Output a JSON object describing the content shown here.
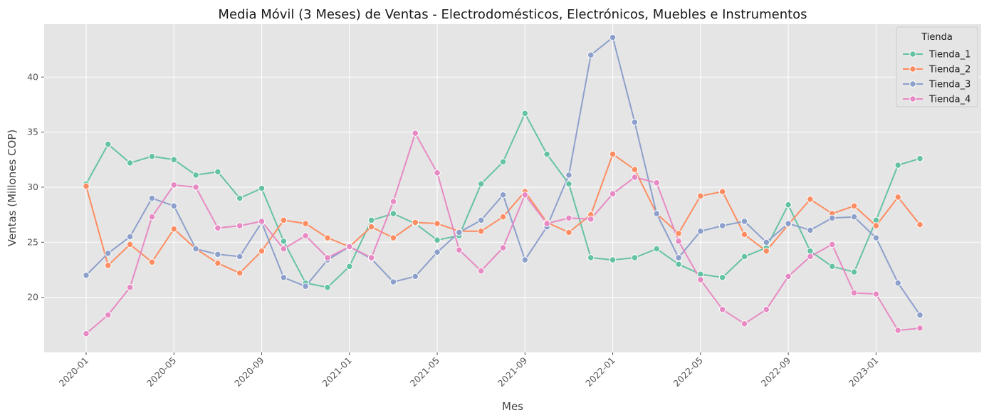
{
  "chart_data": {
    "type": "line",
    "title": "Media Móvil (3 Meses) de Ventas - Electrodomésticos, Electrónicos, Muebles e Instrumentos",
    "xlabel": "Mes",
    "ylabel": "Ventas (Millones COP)",
    "x": [
      "2020-01",
      "2020-02",
      "2020-03",
      "2020-04",
      "2020-05",
      "2020-06",
      "2020-07",
      "2020-08",
      "2020-09",
      "2020-10",
      "2020-11",
      "2020-12",
      "2021-01",
      "2021-02",
      "2021-03",
      "2021-04",
      "2021-05",
      "2021-06",
      "2021-07",
      "2021-08",
      "2021-09",
      "2021-10",
      "2021-11",
      "2021-12",
      "2022-01",
      "2022-02",
      "2022-03",
      "2022-04",
      "2022-05",
      "2022-06",
      "2022-07",
      "2022-08",
      "2022-09",
      "2022-10",
      "2022-11",
      "2022-12",
      "2023-01",
      "2023-02",
      "2023-03"
    ],
    "xticks": [
      "2020-01",
      "2020-05",
      "2020-09",
      "2021-01",
      "2021-05",
      "2021-09",
      "2022-01",
      "2022-05",
      "2022-09",
      "2023-01"
    ],
    "yticks": [
      20,
      25,
      30,
      35,
      40
    ],
    "ylim": [
      15.0,
      44.8
    ],
    "grid": true,
    "legend": {
      "title": "Tienda",
      "placement": "top-right"
    },
    "series": [
      {
        "name": "Tienda_1",
        "color": "#66c2a5",
        "values": [
          30.3,
          33.9,
          32.2,
          32.8,
          32.5,
          31.1,
          31.4,
          29.0,
          29.9,
          25.1,
          21.3,
          20.9,
          22.8,
          27.0,
          27.6,
          26.7,
          25.2,
          25.6,
          30.3,
          32.3,
          36.7,
          33.0,
          30.3,
          23.6,
          23.4,
          23.6,
          24.4,
          23.0,
          22.1,
          21.8,
          23.7,
          24.5,
          28.4,
          24.2,
          22.8,
          22.3,
          27.0,
          32.0,
          32.6
        ]
      },
      {
        "name": "Tienda_2",
        "color": "#fc8d62",
        "values": [
          30.1,
          22.9,
          24.8,
          23.2,
          26.2,
          24.4,
          23.1,
          22.2,
          24.2,
          27.0,
          26.7,
          25.4,
          24.6,
          26.4,
          25.4,
          26.8,
          26.7,
          26.0,
          26.0,
          27.3,
          29.6,
          26.8,
          25.9,
          27.5,
          33.0,
          31.6,
          27.6,
          25.8,
          29.2,
          29.6,
          25.7,
          24.2,
          26.6,
          28.9,
          27.6,
          28.3,
          26.5,
          29.1,
          26.6
        ]
      },
      {
        "name": "Tienda_3",
        "color": "#8da0cb",
        "values": [
          22.0,
          24.0,
          25.5,
          29.0,
          28.3,
          24.4,
          23.9,
          23.7,
          26.8,
          21.8,
          21.0,
          23.4,
          24.6,
          23.5,
          21.4,
          21.9,
          24.1,
          25.9,
          27.0,
          29.3,
          23.4,
          26.4,
          31.1,
          42.0,
          43.6,
          35.9,
          27.6,
          23.6,
          26.0,
          26.5,
          26.9,
          25.0,
          26.7,
          26.1,
          27.2,
          27.3,
          25.4,
          21.3,
          18.4
        ]
      },
      {
        "name": "Tienda_4",
        "color": "#e78ac3",
        "values": [
          16.7,
          18.4,
          20.9,
          27.3,
          30.2,
          30.0,
          26.3,
          26.5,
          26.9,
          24.4,
          25.6,
          23.6,
          24.6,
          23.6,
          28.7,
          34.9,
          31.3,
          24.3,
          22.4,
          24.5,
          29.3,
          26.7,
          27.2,
          27.1,
          29.4,
          30.9,
          30.4,
          25.1,
          21.6,
          18.9,
          17.6,
          18.9,
          21.9,
          23.7,
          24.8,
          20.4,
          20.3,
          17.0,
          17.2
        ]
      }
    ]
  }
}
